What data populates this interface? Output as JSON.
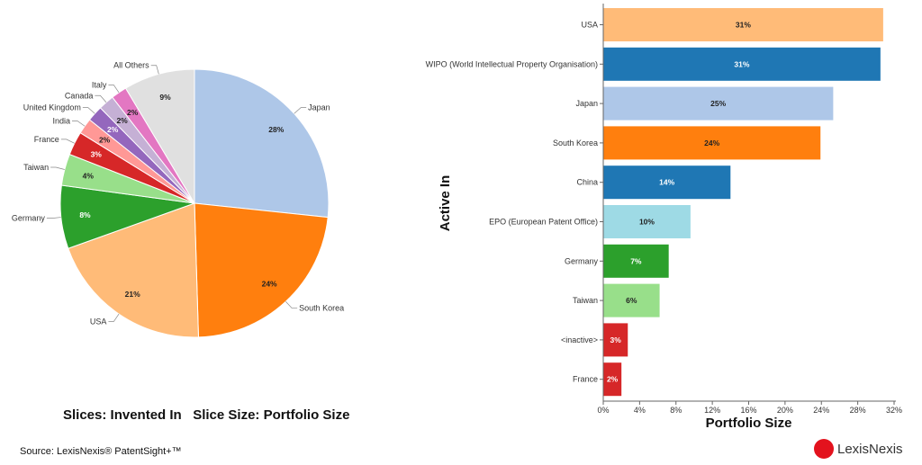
{
  "chart_data": [
    {
      "type": "pie",
      "caption": "Slices: Invented In   Slice Size: Portfolio Size",
      "slices": [
        {
          "label": "Japan",
          "value": 28,
          "color": "#aec7e8"
        },
        {
          "label": "South Korea",
          "value": 24,
          "color": "#ff7f0e"
        },
        {
          "label": "USA",
          "value": 21,
          "color": "#ffbb78"
        },
        {
          "label": "Germany",
          "value": 8,
          "color": "#2ca02c"
        },
        {
          "label": "Taiwan",
          "value": 4,
          "color": "#98df8a"
        },
        {
          "label": "France",
          "value": 3,
          "color": "#d62728"
        },
        {
          "label": "India",
          "value": 2,
          "color": "#ff9896"
        },
        {
          "label": "United Kingdom",
          "value": 2,
          "color": "#9467bd"
        },
        {
          "label": "Canada",
          "value": 2,
          "color": "#c5b0d5"
        },
        {
          "label": "Italy",
          "value": 2,
          "color": "#e377c2"
        },
        {
          "label": "All Others",
          "value": 9,
          "color": "#e0e0e0"
        }
      ]
    },
    {
      "type": "bar",
      "orientation": "horizontal",
      "xlabel": "Portfolio Size",
      "ylabel": "Active In",
      "xlim": [
        0,
        32
      ],
      "xticks": [
        "0%",
        "4%",
        "8%",
        "12%",
        "16%",
        "20%",
        "24%",
        "28%",
        "32%"
      ],
      "bars": [
        {
          "label": "USA",
          "value": 30.8,
          "text": "31%",
          "color": "#ffbb78"
        },
        {
          "label": "WIPO (World Intellectual Property Organisation)",
          "value": 30.5,
          "text": "31%",
          "color": "#1f77b4"
        },
        {
          "label": "Japan",
          "value": 25.3,
          "text": "25%",
          "color": "#aec7e8"
        },
        {
          "label": "South Korea",
          "value": 23.9,
          "text": "24%",
          "color": "#ff7f0e"
        },
        {
          "label": "China",
          "value": 14,
          "text": "14%",
          "color": "#1f77b4"
        },
        {
          "label": "EPO (European Patent Office)",
          "value": 9.6,
          "text": "10%",
          "color": "#9edae5"
        },
        {
          "label": "Germany",
          "value": 7.2,
          "text": "7%",
          "color": "#2ca02c"
        },
        {
          "label": "Taiwan",
          "value": 6.2,
          "text": "6%",
          "color": "#98df8a"
        },
        {
          "label": "<inactive>",
          "value": 2.7,
          "text": "3%",
          "color": "#d62728"
        },
        {
          "label": "France",
          "value": 2.0,
          "text": "2%",
          "color": "#d62728"
        }
      ]
    }
  ],
  "source": "Source: LexisNexis® PatentSight+™",
  "logo": "LexisNexis"
}
